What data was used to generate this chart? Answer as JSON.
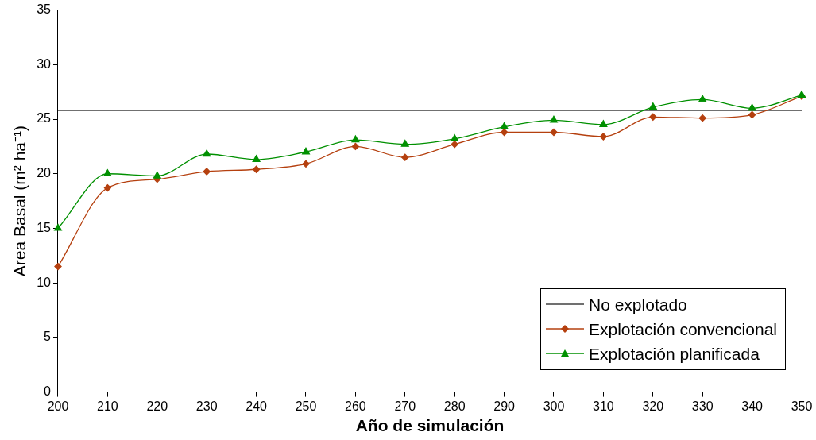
{
  "chart_data": {
    "type": "line",
    "xlabel": "Año de simulación",
    "ylabel": "Area Basal (m² ha⁻¹)",
    "x": [
      200,
      210,
      220,
      230,
      240,
      250,
      260,
      270,
      280,
      290,
      300,
      310,
      320,
      330,
      340,
      350
    ],
    "series": [
      {
        "name": "No explotado",
        "color": "#404040",
        "marker": "none",
        "values": [
          25.8,
          25.8,
          25.8,
          25.8,
          25.8,
          25.8,
          25.8,
          25.8,
          25.8,
          25.8,
          25.8,
          25.8,
          25.8,
          25.8,
          25.8,
          25.8
        ]
      },
      {
        "name": "Explotación convencional",
        "color": "#b5400f",
        "marker": "diamond",
        "values": [
          11.5,
          18.7,
          19.5,
          20.2,
          20.4,
          20.9,
          22.5,
          21.5,
          22.7,
          23.8,
          23.8,
          23.4,
          25.2,
          25.1,
          25.4,
          27.1
        ]
      },
      {
        "name": "Explotación planificada",
        "color": "#009000",
        "marker": "triangle",
        "values": [
          15.0,
          20.0,
          19.8,
          21.8,
          21.3,
          22.0,
          23.1,
          22.7,
          23.2,
          24.3,
          24.9,
          24.5,
          26.1,
          26.8,
          26.0,
          27.2
        ]
      }
    ],
    "xlim": [
      200,
      350
    ],
    "xticks": [
      200,
      210,
      220,
      230,
      240,
      250,
      260,
      270,
      280,
      290,
      300,
      310,
      320,
      330,
      340,
      350
    ],
    "ylim": [
      0,
      35
    ],
    "yticks": [
      0,
      5,
      10,
      15,
      20,
      25,
      30,
      35
    ],
    "grid": false,
    "legend": "bottom right"
  }
}
